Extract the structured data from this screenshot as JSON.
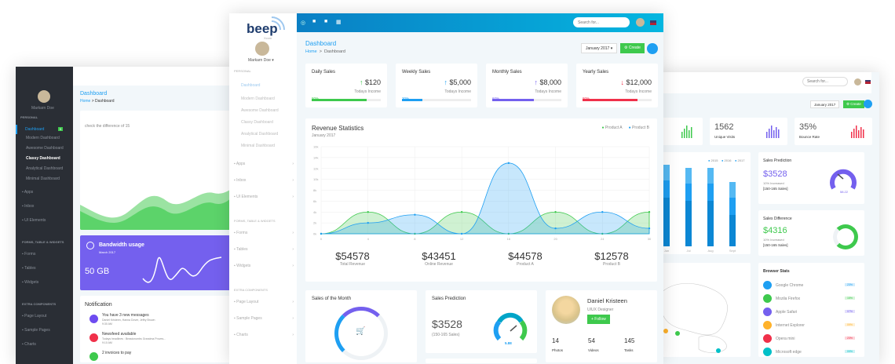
{
  "left": {
    "user": "Markarn Doe",
    "sidebar": {
      "section1": "PERSONAL",
      "dashboard": "Dashboard",
      "badge": "5",
      "sub": [
        "Modern Dashboard",
        "Awesome Dashboard",
        "Classy Dashboard",
        "Analytical Dashboard",
        "Minimal Dashboard"
      ],
      "items1": [
        "Apps",
        "Inbox",
        "UI Elements"
      ],
      "section2": "FORMS, TABLE & WIDGETS",
      "items2": [
        "Forms",
        "Tables",
        "Widgets"
      ],
      "section3": "EXTRA COMPONENTS",
      "items3": [
        "Page Layout",
        "Sample Pages",
        "Charts"
      ]
    },
    "title": "Dashboard",
    "breadcrumb_home": "Home",
    "breadcrumb_current": "Dashboard",
    "chart_note": "check the difference of 15",
    "bandwidth": {
      "title": "Bandwidth usage",
      "date": "March 2017",
      "value": "50 GB"
    },
    "notification": {
      "title": "Notification",
      "items": [
        {
          "title": "You have 3 new messages",
          "sub": "Daniel Kristeen, Hanna Dover, Jeffry Brown",
          "time": "9:30 AM",
          "color": "#6e4cf0"
        },
        {
          "title": "Newsfeed available",
          "sub": "Todays headlines : Breadcrumbs Grandma Proves...",
          "time": "9:10 AM",
          "color": "#f0304a"
        },
        {
          "title": "2 invoices to pay",
          "sub": "",
          "time": "",
          "color": "#3ec94d"
        }
      ]
    }
  },
  "center": {
    "logo": "beep",
    "logo_sub": "Xcom",
    "user": "Markarn Doe",
    "sidebar": {
      "section1": "PERSONAL",
      "dashboard": "Dashboard",
      "sub": [
        "Modern Dashboard",
        "Awesome Dashboard",
        "Classy Dashboard",
        "Analytical Dashboard",
        "Minimal Dashboard"
      ],
      "items1": [
        "Apps",
        "Inbox",
        "UI Elements"
      ],
      "section2": "FORMS, TABLE & WIDGETS",
      "items2": [
        "Forms",
        "Tables",
        "Widgets"
      ],
      "section3": "EXTRA COMPONENTS",
      "items3": [
        "Page Layout",
        "Sample Pages",
        "Charts"
      ]
    },
    "search_placeholder": "Search for...",
    "title": "Dashboard",
    "breadcrumb_home": "Home",
    "breadcrumb_current": "Dashboard",
    "month_select": "January 2017",
    "create_label": "Create",
    "stats": [
      {
        "title": "Daily Sales",
        "value": "$120",
        "sub": "Todays Income",
        "percent": "80%",
        "fill": 80,
        "color": "#3ec94d",
        "arrow": "↑"
      },
      {
        "title": "Weekly Sales",
        "value": "$5,000",
        "sub": "Todays Income",
        "percent": "30%",
        "fill": 30,
        "color": "#1e9ff2",
        "arrow": "↑"
      },
      {
        "title": "Monthly Sales",
        "value": "$8,000",
        "sub": "Todays Income",
        "percent": "60%",
        "fill": 60,
        "color": "#7460ee",
        "arrow": "↑"
      },
      {
        "title": "Yearly Sales",
        "value": "$12,000",
        "sub": "Todays Income",
        "percent": "80%",
        "fill": 80,
        "color": "#f0304a",
        "arrow": "↓"
      }
    ],
    "revenue": {
      "title": "Revenue Statistics",
      "subtitle": "January 2017",
      "totals": [
        {
          "value": "$54578",
          "label": "Total Revenue"
        },
        {
          "value": "$43451",
          "label": "Online Revenue"
        },
        {
          "value": "$44578",
          "label": "Product A"
        },
        {
          "value": "$12578",
          "label": "Product B"
        }
      ]
    },
    "sales_month": {
      "title": "Sales of the Month"
    },
    "sales_prediction": {
      "title": "Sales Prediction",
      "value": "$3528",
      "sub": "(150-165 Sales)",
      "gauge": "5.88"
    },
    "profile": {
      "name": "Daniel Kristeen",
      "role": "UIUX Designer",
      "follow": "+ Follow",
      "stats": [
        {
          "n": "14",
          "l": "Photos"
        },
        {
          "n": "54",
          "l": "Videos"
        },
        {
          "n": "145",
          "l": "Tasks"
        }
      ]
    }
  },
  "chart_data": {
    "type": "area",
    "x": [
      "0",
      "4",
      "8",
      "12",
      "16",
      "20",
      "24",
      "30"
    ],
    "yticks": [
      "0k",
      "2k",
      "4k",
      "6k",
      "8k",
      "10k",
      "12k",
      "14k",
      "16k"
    ],
    "ylim": [
      0,
      16
    ],
    "legend_position": "top-right",
    "series": [
      {
        "name": "Product A",
        "color": "#3ec94d",
        "values": [
          0,
          4,
          0,
          4,
          0,
          4,
          0,
          4
        ]
      },
      {
        "name": "Product B",
        "color": "#1e9ff2",
        "values": [
          0,
          2,
          3.5,
          0,
          13,
          1,
          4,
          1
        ]
      }
    ]
  },
  "right": {
    "search_placeholder": "Search for...",
    "month_select": "January 2017",
    "create_label": "Create",
    "kpis": [
      {
        "value": "1562",
        "label": "Unique Visits",
        "color": "#7460ee"
      },
      {
        "value": "35%",
        "label": "Bounce Rate",
        "color": "#f0304a"
      }
    ],
    "bar_legend": [
      "2015",
      "2016",
      "2017"
    ],
    "bar_x": [
      "Jun",
      "Jul",
      "Aug",
      "Sept"
    ],
    "prediction": {
      "title": "Sales Prediction",
      "value": "$3528",
      "sub1": "10% Increased",
      "sub2": "[150-165 Sales]",
      "gauge": "58.22"
    },
    "difference": {
      "title": "Sales Difference",
      "value": "$4316",
      "sub1": "10% Increased",
      "sub2": "[150-165 Sales]"
    },
    "browser": {
      "title": "Browser Stats",
      "items": [
        {
          "name": "Google Chrome",
          "pct": "23%",
          "color": "#1e9ff2"
        },
        {
          "name": "Mozila Firefox",
          "pct": "15%",
          "color": "#3ec94d"
        },
        {
          "name": "Apple Safari",
          "pct": "07%",
          "color": "#7460ee"
        },
        {
          "name": "Internet Explorer",
          "pct": "09%",
          "color": "#ffb22b"
        },
        {
          "name": "Opera mini",
          "pct": "23%",
          "color": "#f0304a"
        },
        {
          "name": "Microsoft edge",
          "pct": "09%",
          "color": "#01c0c8"
        }
      ]
    }
  }
}
